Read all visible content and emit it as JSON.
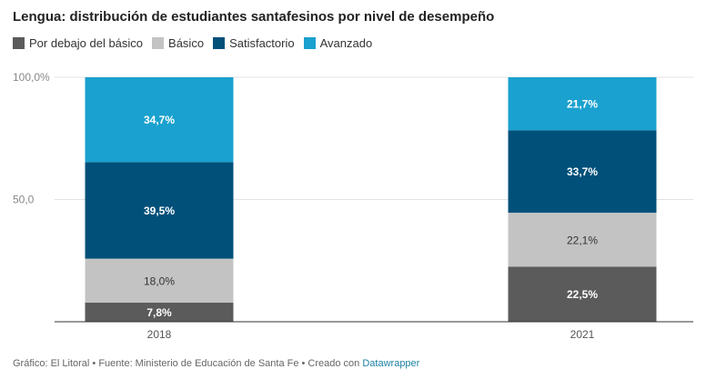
{
  "colors": {
    "Por debajo del básico": "#5b5b5b",
    "Básico": "#c3c3c3",
    "Satisfactorio": "#00507a",
    "Avanzado": "#1aa1cf"
  },
  "chart_data": {
    "type": "bar",
    "stacked": true,
    "title": "Lengua: distribución de estudiantes santafesinos por nivel de desempeño",
    "categories": [
      "2018",
      "2021"
    ],
    "series": [
      {
        "name": "Por debajo del básico",
        "values": [
          7.8,
          22.5
        ],
        "labels": [
          "7,8%",
          "22,5%"
        ]
      },
      {
        "name": "Básico",
        "values": [
          18.0,
          22.1
        ],
        "labels": [
          "18,0%",
          "22,1%"
        ]
      },
      {
        "name": "Satisfactorio",
        "values": [
          39.5,
          33.7
        ],
        "labels": [
          "39,5%",
          "33,7%"
        ]
      },
      {
        "name": "Avanzado",
        "values": [
          34.7,
          21.7
        ],
        "labels": [
          "34,7%",
          "21,7%"
        ]
      }
    ],
    "ylim": [
      0,
      100
    ],
    "yticks": [
      50,
      100
    ],
    "ytick_labels": [
      "50,0",
      "100,0%"
    ],
    "grid": true,
    "legend": "top-left"
  },
  "footer": {
    "text": "Gráfico: El Litoral • Fuente: Ministerio de Educación de Santa Fe • Creado con ",
    "link": "Datawrapper"
  }
}
